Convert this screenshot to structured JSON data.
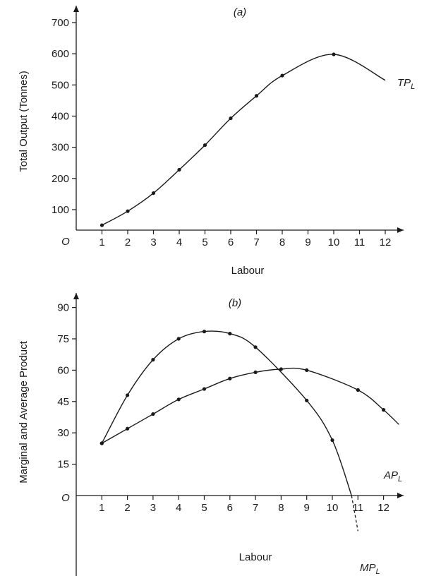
{
  "chart_data": [
    {
      "panel_label": "(a)",
      "type": "line",
      "origin_label": "O",
      "xlabel": "Labour",
      "ylabel": "Total Output (Tonnes)",
      "xlim": [
        0,
        12.7
      ],
      "ylim": [
        50,
        740
      ],
      "xticks": [
        1,
        2,
        3,
        4,
        5,
        6,
        7,
        8,
        9,
        10,
        11,
        12
      ],
      "yticks": [
        100,
        200,
        300,
        400,
        500,
        600,
        700
      ],
      "series": [
        {
          "label_main": "TP",
          "label_sub": "L",
          "x": [
            1,
            2,
            3,
            4,
            5,
            6,
            7,
            8,
            10
          ],
          "y": [
            50,
            95,
            153,
            228,
            307,
            393,
            465,
            530,
            598
          ],
          "curve_extends_to_x": 12,
          "curve_end_y": 515
        }
      ]
    },
    {
      "panel_label": "(b)",
      "type": "line",
      "origin_label": "O",
      "xlabel": "Labour",
      "ylabel": "Marginal and Average Product",
      "xlim": [
        0,
        12.7
      ],
      "ylim": [
        -20,
        95
      ],
      "xticks": [
        1,
        2,
        3,
        4,
        5,
        6,
        7,
        8,
        9,
        10,
        11,
        12
      ],
      "yticks": [
        15,
        30,
        45,
        60,
        75,
        90
      ],
      "series": [
        {
          "label_main": "AP",
          "label_sub": "L",
          "x": [
            1,
            2,
            3,
            4,
            5,
            6,
            7,
            8,
            9,
            11,
            12
          ],
          "y": [
            25,
            32,
            39,
            46,
            51,
            56,
            59,
            60.5,
            60,
            50.5,
            41
          ],
          "curve_extends_to_x": 12.6,
          "curve_end_y": 34
        },
        {
          "label_main": "MP",
          "label_sub": "L",
          "x": [
            1,
            2,
            3,
            4,
            5,
            6,
            7,
            9,
            10
          ],
          "y": [
            25,
            48,
            65,
            75,
            78.5,
            77.5,
            71,
            45.5,
            26.5
          ],
          "curve_zero_at_x": 10.75,
          "dashed_to": [
            11,
            -17
          ]
        }
      ]
    }
  ]
}
